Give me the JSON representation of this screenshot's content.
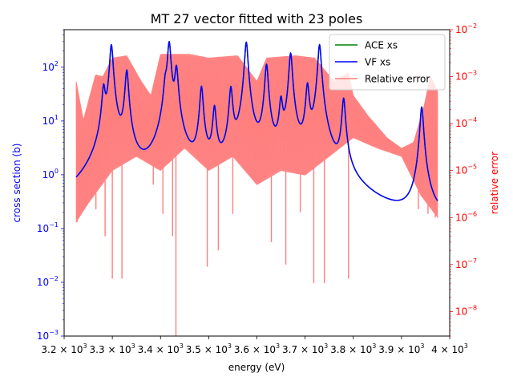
{
  "chart_data": {
    "type": "line",
    "title": "MT 27 vector fitted with 23 poles",
    "xlabel": "energy (eV)",
    "ylabel_left": "cross section (b)",
    "ylabel_right": "relative error",
    "xlim": [
      3200,
      4000
    ],
    "ylim_left": [
      0.001,
      500
    ],
    "ylim_right": [
      3e-09,
      0.01
    ],
    "yscale": "log",
    "x_ticks": [
      3200,
      3300,
      3400,
      3500,
      3600,
      3700,
      3800,
      3900,
      4000
    ],
    "x_tick_mantissas": [
      "3.2",
      "3.3",
      "3.4",
      "3.5",
      "3.6",
      "3.7",
      "3.8",
      "3.9",
      "4"
    ],
    "x_tick_base": "× 10",
    "x_tick_exp": "3",
    "y_left_ticks": [
      {
        "base": "10",
        "exp": "2",
        "value": 100
      },
      {
        "base": "10",
        "exp": "1",
        "value": 10
      },
      {
        "base": "10",
        "exp": "0",
        "value": 1
      },
      {
        "base": "10",
        "exp": "−1",
        "value": 0.1
      },
      {
        "base": "10",
        "exp": "−2",
        "value": 0.01
      },
      {
        "base": "10",
        "exp": "−3",
        "value": 0.001
      }
    ],
    "y_right_ticks": [
      {
        "base": "10",
        "exp": "−2",
        "value": 0.01
      },
      {
        "base": "10",
        "exp": "−3",
        "value": 0.001
      },
      {
        "base": "10",
        "exp": "−4",
        "value": 0.0001
      },
      {
        "base": "10",
        "exp": "−5",
        "value": 1e-05
      },
      {
        "base": "10",
        "exp": "−6",
        "value": 1e-06
      },
      {
        "base": "10",
        "exp": "−7",
        "value": 1e-07
      },
      {
        "base": "10",
        "exp": "−8",
        "value": 1e-08
      }
    ],
    "legend": {
      "placement": "top-right",
      "entries": [
        {
          "label": "ACE xs",
          "color": "#008000"
        },
        {
          "label": "VF xs",
          "color": "#0000ff"
        },
        {
          "label": "Relative error",
          "color": "#ff7f7f"
        }
      ]
    },
    "series": [
      {
        "name": "VF xs",
        "axis": "left",
        "color": "#0000ff",
        "energy_range": [
          3225,
          3975
        ],
        "background": [
          [
            3225,
            0.031
          ],
          [
            3300,
            0.006
          ],
          [
            3350,
            0.0035
          ],
          [
            3450,
            0.009
          ],
          [
            3550,
            0.012
          ],
          [
            3650,
            0.006
          ],
          [
            3750,
            0.008
          ],
          [
            3800,
            0.004
          ],
          [
            3850,
            0.0018
          ],
          [
            3890,
            0.0016
          ],
          [
            3920,
            0.0019
          ],
          [
            3945,
            0.004
          ],
          [
            3975,
            0.026
          ]
        ],
        "resonances": [
          {
            "energy": 3282,
            "peak": 38
          },
          {
            "energy": 3298,
            "peak": 260
          },
          {
            "energy": 3330,
            "peak": 85
          },
          {
            "energy": 3410,
            "peak": 35
          },
          {
            "energy": 3418,
            "peak": 290
          },
          {
            "energy": 3433,
            "peak": 95
          },
          {
            "energy": 3485,
            "peak": 42
          },
          {
            "energy": 3512,
            "peak": 17
          },
          {
            "energy": 3546,
            "peak": 40
          },
          {
            "energy": 3578,
            "peak": 290
          },
          {
            "energy": 3620,
            "peak": 110
          },
          {
            "energy": 3650,
            "peak": 22
          },
          {
            "energy": 3670,
            "peak": 180
          },
          {
            "energy": 3705,
            "peak": 45
          },
          {
            "energy": 3730,
            "peak": 260
          },
          {
            "energy": 3780,
            "peak": 25
          },
          {
            "energy": 3942,
            "peak": 18
          }
        ]
      },
      {
        "name": "ACE xs",
        "axis": "left",
        "color": "#008000",
        "note": "overlaps VF xs"
      },
      {
        "name": "Relative error",
        "axis": "right",
        "color": "#ff7f7f",
        "envelope_top": [
          [
            3225,
            0.0008
          ],
          [
            3240,
            0.00012
          ],
          [
            3265,
            0.0011
          ],
          [
            3280,
            0.001
          ],
          [
            3300,
            0.0025
          ],
          [
            3330,
            0.0028
          ],
          [
            3360,
            0.0008
          ],
          [
            3380,
            0.0004
          ],
          [
            3400,
            0.003
          ],
          [
            3440,
            0.003
          ],
          [
            3460,
            0.003
          ],
          [
            3500,
            0.0025
          ],
          [
            3560,
            0.0028
          ],
          [
            3600,
            0.0008
          ],
          [
            3620,
            0.0025
          ],
          [
            3680,
            0.0028
          ],
          [
            3720,
            0.0025
          ],
          [
            3760,
            0.0008
          ],
          [
            3790,
            0.0012
          ],
          [
            3800,
            0.0004
          ],
          [
            3830,
            0.00015
          ],
          [
            3870,
            5e-05
          ],
          [
            3900,
            3e-05
          ],
          [
            3925,
            4e-05
          ],
          [
            3945,
            0.0002
          ],
          [
            3960,
            0.001
          ],
          [
            3975,
            0.0005
          ]
        ],
        "envelope_bottom": [
          [
            3225,
            8e-07
          ],
          [
            3250,
            2e-06
          ],
          [
            3300,
            1e-05
          ],
          [
            3350,
            2e-05
          ],
          [
            3400,
            1e-05
          ],
          [
            3450,
            3e-05
          ],
          [
            3500,
            1e-05
          ],
          [
            3550,
            2e-05
          ],
          [
            3600,
            5e-06
          ],
          [
            3650,
            1e-05
          ],
          [
            3700,
            8e-06
          ],
          [
            3750,
            2e-05
          ],
          [
            3800,
            5e-05
          ],
          [
            3850,
            3e-05
          ],
          [
            3900,
            2e-05
          ],
          [
            3940,
            3e-06
          ],
          [
            3975,
            1e-06
          ]
        ],
        "dips": [
          [
            3227,
            8e-07
          ],
          [
            3266,
            1.5e-06
          ],
          [
            3285,
            4e-07
          ],
          [
            3300,
            5e-08
          ],
          [
            3320,
            5e-08
          ],
          [
            3385,
            5e-06
          ],
          [
            3405,
            1.2e-06
          ],
          [
            3425,
            4e-07
          ],
          [
            3432,
            3e-09
          ],
          [
            3497,
            9e-08
          ],
          [
            3520,
            2e-07
          ],
          [
            3550,
            1.2e-06
          ],
          [
            3600,
            5e-06
          ],
          [
            3630,
            3e-07
          ],
          [
            3660,
            1e-07
          ],
          [
            3690,
            1.3e-06
          ],
          [
            3718,
            4e-08
          ],
          [
            3740,
            4e-08
          ],
          [
            3790,
            5e-08
          ],
          [
            3935,
            1.5e-06
          ],
          [
            3955,
            1.2e-06
          ],
          [
            3970,
            1e-06
          ]
        ]
      }
    ]
  }
}
